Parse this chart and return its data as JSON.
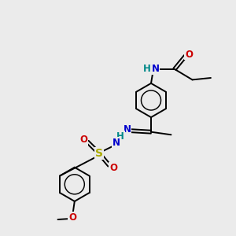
{
  "bg_color": "#ebebeb",
  "bond_lw": 1.4,
  "ring_r": 0.72,
  "fs": 8.5,
  "colors": {
    "N": "#0000cc",
    "O": "#cc0000",
    "S": "#aaaa00",
    "H": "#008888",
    "C": "#000000"
  }
}
